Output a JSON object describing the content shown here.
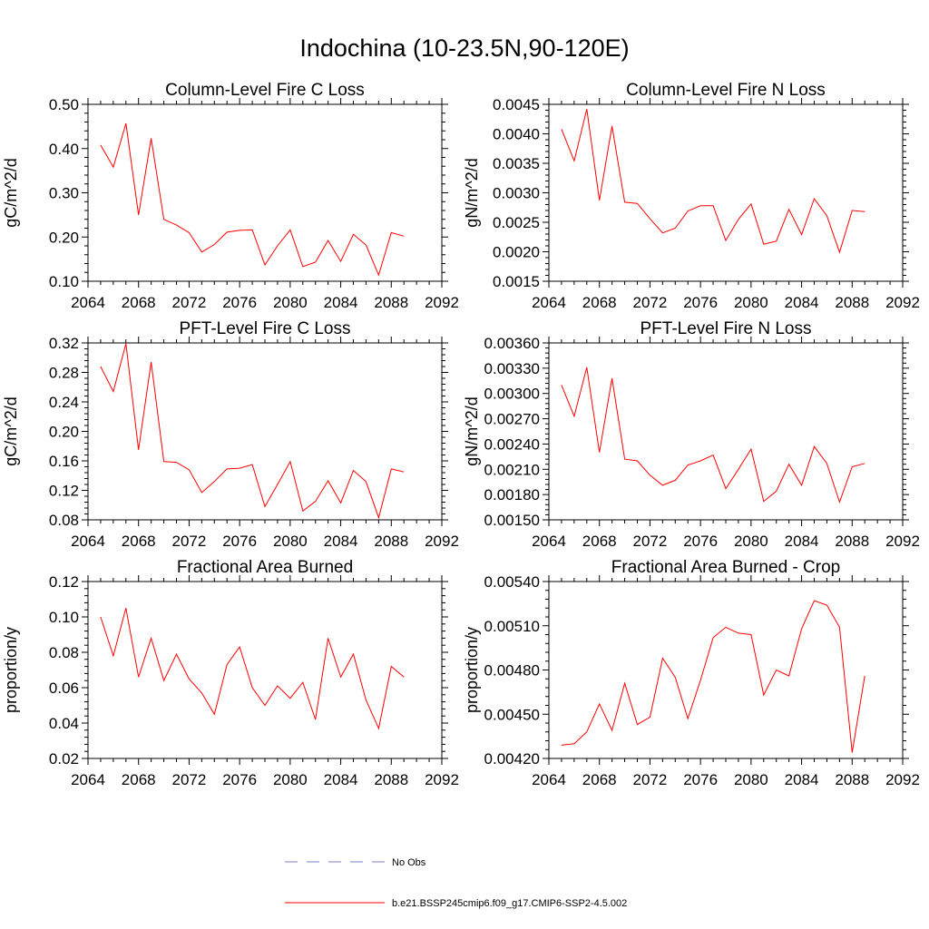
{
  "page": {
    "title": "Indochina (10-23.5N,90-120E)"
  },
  "legend": [
    {
      "label": "No Obs",
      "color": "#7b7bc8",
      "dashed": true
    },
    {
      "label": "b.e21.BSSP245cmip6.f09_g17.CMIP6-SSP2-4.5.002",
      "color": "#ff0000",
      "dashed": false
    }
  ],
  "chart_data": [
    {
      "type": "line",
      "title": "Column-Level Fire C Loss",
      "ylabel": "gC/m^2/d",
      "xlim": [
        2064,
        2092
      ],
      "ylim": [
        0.1,
        0.5
      ],
      "xticks": [
        "2064",
        "2068",
        "2072",
        "2076",
        "2080",
        "2084",
        "2088",
        "2092"
      ],
      "yticks": [
        "0.10",
        "0.20",
        "0.30",
        "0.40",
        "0.50"
      ],
      "x": [
        2065,
        2066,
        2067,
        2068,
        2069,
        2070,
        2071,
        2072,
        2073,
        2074,
        2075,
        2076,
        2077,
        2078,
        2079,
        2080,
        2081,
        2082,
        2083,
        2084,
        2085,
        2086,
        2087,
        2088,
        2089
      ],
      "series": [
        {
          "name": "b.e21.BSSP245cmip6.f09_g17.CMIP6-SSP2-4.5.002",
          "color": "#ff0000",
          "values": [
            0.408,
            0.358,
            0.457,
            0.25,
            0.423,
            0.24,
            0.227,
            0.21,
            0.166,
            0.183,
            0.211,
            0.215,
            0.216,
            0.137,
            0.18,
            0.216,
            0.133,
            0.143,
            0.192,
            0.145,
            0.206,
            0.182,
            0.114,
            0.21,
            0.202
          ]
        }
      ]
    },
    {
      "type": "line",
      "title": "Column-Level Fire N Loss",
      "ylabel": "gN/m^2/d",
      "xlim": [
        2064,
        2092
      ],
      "ylim": [
        0.0015,
        0.0045
      ],
      "xticks": [
        "2064",
        "2068",
        "2072",
        "2076",
        "2080",
        "2084",
        "2088",
        "2092"
      ],
      "yticks": [
        "0.0015",
        "0.0020",
        "0.0025",
        "0.0030",
        "0.0035",
        "0.0040",
        "0.0045"
      ],
      "x": [
        2065,
        2066,
        2067,
        2068,
        2069,
        2070,
        2071,
        2072,
        2073,
        2074,
        2075,
        2076,
        2077,
        2078,
        2079,
        2080,
        2081,
        2082,
        2083,
        2084,
        2085,
        2086,
        2087,
        2088,
        2089
      ],
      "series": [
        {
          "name": "b.e21.BSSP245cmip6.f09_g17.CMIP6-SSP2-4.5.002",
          "color": "#ff0000",
          "values": [
            0.00408,
            0.00354,
            0.00442,
            0.00287,
            0.00413,
            0.00284,
            0.00282,
            0.00256,
            0.00232,
            0.0024,
            0.00269,
            0.00278,
            0.00278,
            0.00219,
            0.00255,
            0.00281,
            0.00213,
            0.00218,
            0.00272,
            0.00229,
            0.0029,
            0.00261,
            0.00199,
            0.0027,
            0.00268
          ]
        }
      ]
    },
    {
      "type": "line",
      "title": "PFT-Level Fire C Loss",
      "ylabel": "gC/m^2/d",
      "xlim": [
        2064,
        2092
      ],
      "ylim": [
        0.08,
        0.32
      ],
      "xticks": [
        "2064",
        "2068",
        "2072",
        "2076",
        "2080",
        "2084",
        "2088",
        "2092"
      ],
      "yticks": [
        "0.08",
        "0.12",
        "0.16",
        "0.20",
        "0.24",
        "0.28",
        "0.32"
      ],
      "x": [
        2065,
        2066,
        2067,
        2068,
        2069,
        2070,
        2071,
        2072,
        2073,
        2074,
        2075,
        2076,
        2077,
        2078,
        2079,
        2080,
        2081,
        2082,
        2083,
        2084,
        2085,
        2086,
        2087,
        2088,
        2089
      ],
      "series": [
        {
          "name": "b.e21.BSSP245cmip6.f09_g17.CMIP6-SSP2-4.5.002",
          "color": "#ff0000",
          "values": [
            0.288,
            0.254,
            0.319,
            0.175,
            0.294,
            0.159,
            0.158,
            0.148,
            0.117,
            0.132,
            0.149,
            0.15,
            0.155,
            0.098,
            0.128,
            0.159,
            0.092,
            0.105,
            0.133,
            0.103,
            0.147,
            0.132,
            0.083,
            0.149,
            0.145
          ]
        }
      ]
    },
    {
      "type": "line",
      "title": "PFT-Level Fire N Loss",
      "ylabel": "gN/m^2/d",
      "xlim": [
        2064,
        2092
      ],
      "ylim": [
        0.0015,
        0.0036
      ],
      "xticks": [
        "2064",
        "2068",
        "2072",
        "2076",
        "2080",
        "2084",
        "2088",
        "2092"
      ],
      "yticks": [
        "0.00150",
        "0.00180",
        "0.00210",
        "0.00240",
        "0.00270",
        "0.00300",
        "0.00330",
        "0.00360"
      ],
      "x": [
        2065,
        2066,
        2067,
        2068,
        2069,
        2070,
        2071,
        2072,
        2073,
        2074,
        2075,
        2076,
        2077,
        2078,
        2079,
        2080,
        2081,
        2082,
        2083,
        2084,
        2085,
        2086,
        2087,
        2088,
        2089
      ],
      "series": [
        {
          "name": "b.e21.BSSP245cmip6.f09_g17.CMIP6-SSP2-4.5.002",
          "color": "#ff0000",
          "values": [
            0.0031,
            0.00273,
            0.00331,
            0.0023,
            0.00318,
            0.00222,
            0.0022,
            0.00203,
            0.00191,
            0.00197,
            0.00215,
            0.0022,
            0.00227,
            0.00187,
            0.0021,
            0.00234,
            0.00172,
            0.00184,
            0.00216,
            0.00191,
            0.00237,
            0.00217,
            0.00171,
            0.00213,
            0.00217
          ]
        }
      ]
    },
    {
      "type": "line",
      "title": "Fractional Area Burned",
      "ylabel": "proportion/y",
      "xlim": [
        2064,
        2092
      ],
      "ylim": [
        0.02,
        0.12
      ],
      "xticks": [
        "2064",
        "2068",
        "2072",
        "2076",
        "2080",
        "2084",
        "2088",
        "2092"
      ],
      "yticks": [
        "0.02",
        "0.04",
        "0.06",
        "0.08",
        "0.10",
        "0.12"
      ],
      "x": [
        2065,
        2066,
        2067,
        2068,
        2069,
        2070,
        2071,
        2072,
        2073,
        2074,
        2075,
        2076,
        2077,
        2078,
        2079,
        2080,
        2081,
        2082,
        2083,
        2084,
        2085,
        2086,
        2087,
        2088,
        2089
      ],
      "series": [
        {
          "name": "b.e21.BSSP245cmip6.f09_g17.CMIP6-SSP2-4.5.002",
          "color": "#ff0000",
          "values": [
            0.1,
            0.078,
            0.105,
            0.066,
            0.088,
            0.064,
            0.079,
            0.065,
            0.057,
            0.045,
            0.073,
            0.083,
            0.06,
            0.05,
            0.061,
            0.054,
            0.063,
            0.042,
            0.088,
            0.066,
            0.079,
            0.053,
            0.037,
            0.072,
            0.066
          ]
        }
      ]
    },
    {
      "type": "line",
      "title": "Fractional Area Burned - Crop",
      "ylabel": "proportion/y",
      "xlim": [
        2064,
        2092
      ],
      "ylim": [
        0.0042,
        0.0054
      ],
      "xticks": [
        "2064",
        "2068",
        "2072",
        "2076",
        "2080",
        "2084",
        "2088",
        "2092"
      ],
      "yticks": [
        "0.00420",
        "0.00450",
        "0.00480",
        "0.00510",
        "0.00540"
      ],
      "x": [
        2065,
        2066,
        2067,
        2068,
        2069,
        2070,
        2071,
        2072,
        2073,
        2074,
        2075,
        2076,
        2077,
        2078,
        2079,
        2080,
        2081,
        2082,
        2083,
        2084,
        2085,
        2086,
        2087,
        2088,
        2089
      ],
      "series": [
        {
          "name": "b.e21.BSSP245cmip6.f09_g17.CMIP6-SSP2-4.5.002",
          "color": "#ff0000",
          "values": [
            0.00429,
            0.0043,
            0.00438,
            0.00457,
            0.00439,
            0.00471,
            0.00443,
            0.00448,
            0.00488,
            0.00475,
            0.00447,
            0.00473,
            0.00502,
            0.00509,
            0.00505,
            0.00504,
            0.00463,
            0.0048,
            0.00476,
            0.00508,
            0.00527,
            0.00524,
            0.00509,
            0.00424,
            0.00476
          ]
        }
      ]
    }
  ]
}
